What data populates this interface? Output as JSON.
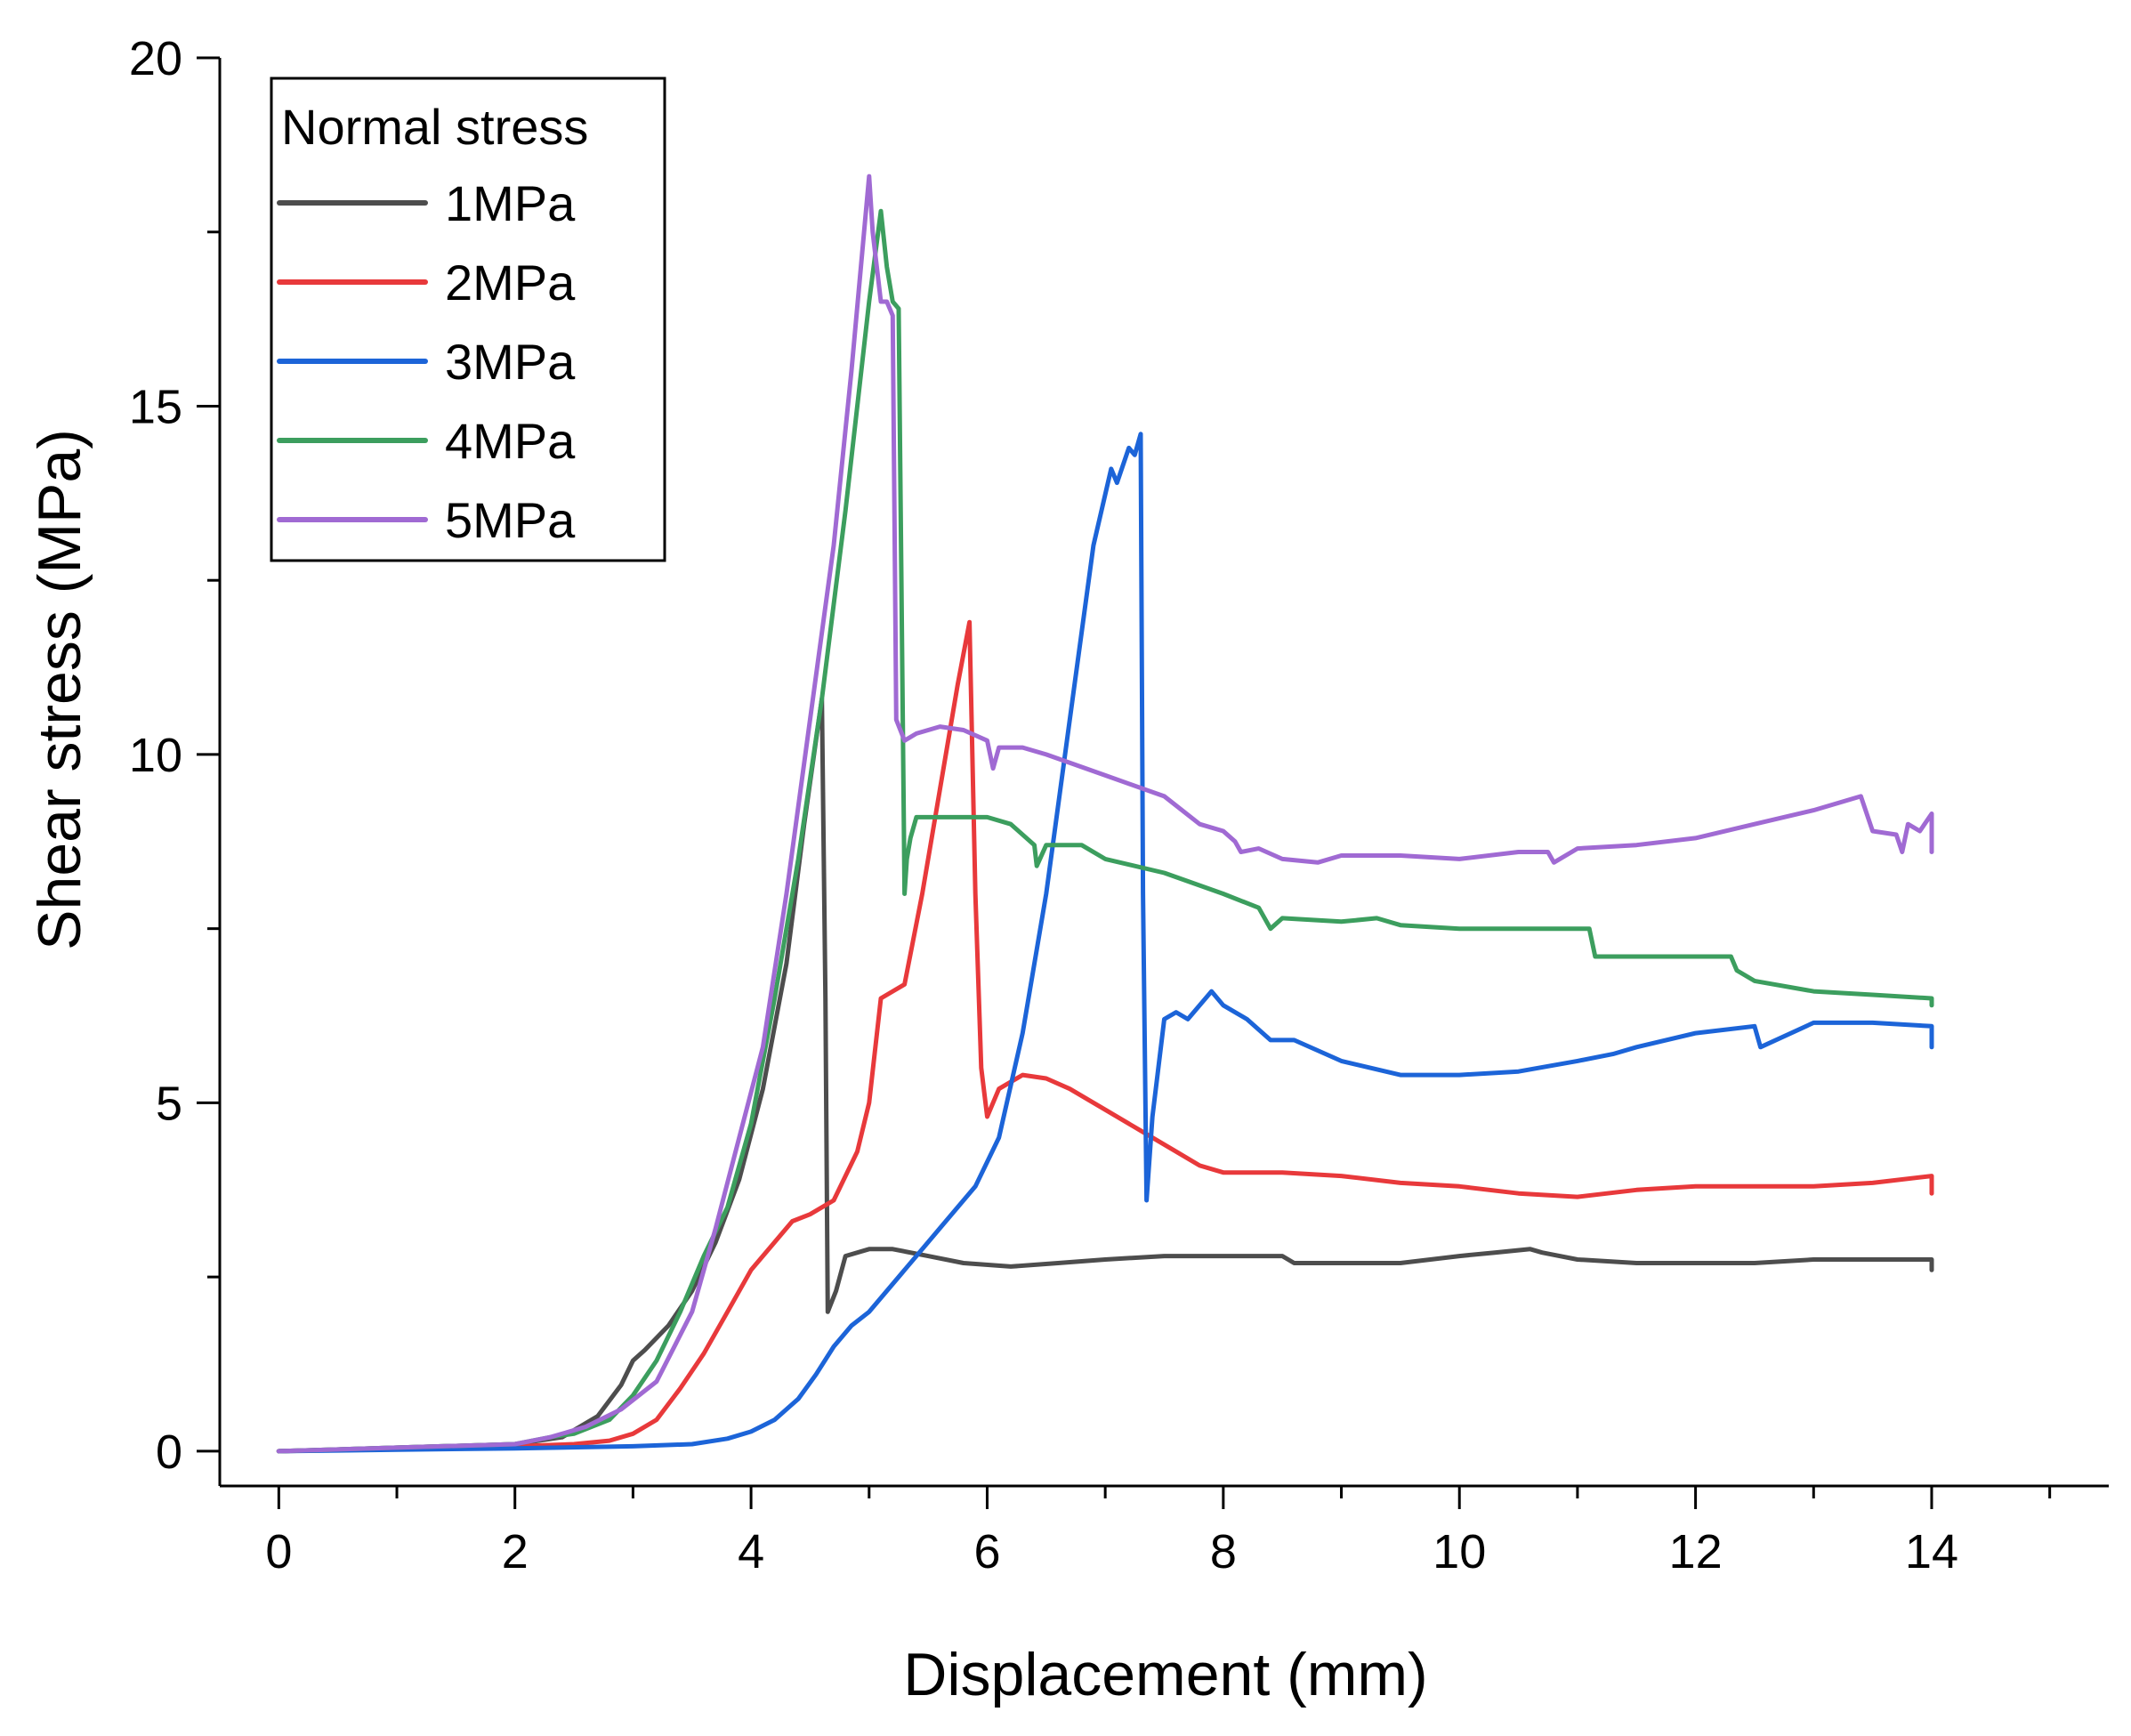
{
  "chart_data": {
    "type": "line",
    "title": "",
    "xlabel": "Displacement (mm)",
    "ylabel": "Shear stress (MPa)",
    "xlim": [
      -0.5,
      15.5
    ],
    "ylim": [
      -0.5,
      20
    ],
    "xticks": [
      0,
      2,
      4,
      6,
      8,
      10,
      12,
      14
    ],
    "xtick_labels": [
      "0",
      "2",
      "4",
      "6",
      "8",
      "10",
      "12",
      "14"
    ],
    "yticks": [
      0,
      5,
      10,
      15,
      20
    ],
    "ytick_labels": [
      "0",
      "5",
      "10",
      "15",
      "20"
    ],
    "legend": {
      "title": "Normal stress",
      "location": "top-left"
    },
    "series": [
      {
        "name": "1MPa",
        "color": "#4d4d4d",
        "x": [
          0,
          1,
          2,
          2.4,
          2.7,
          2.9,
          3.0,
          3.1,
          3.3,
          3.5,
          3.7,
          3.9,
          4.1,
          4.3,
          4.45,
          4.6,
          4.63,
          4.65,
          4.72,
          4.8,
          5.0,
          5.2,
          5.5,
          5.8,
          6.2,
          6.6,
          7.0,
          7.5,
          8.0,
          8.5,
          8.6,
          9.0,
          9.5,
          10.0,
          10.3,
          10.6,
          10.7,
          11.0,
          11.5,
          12.0,
          12.5,
          13.0,
          13.5,
          14.0,
          14.0
        ],
        "y": [
          0,
          0.05,
          0.1,
          0.2,
          0.5,
          0.95,
          1.3,
          1.45,
          1.8,
          2.3,
          3.0,
          3.9,
          5.2,
          7.0,
          9.0,
          10.8,
          6.5,
          2.0,
          2.3,
          2.8,
          2.9,
          2.9,
          2.8,
          2.7,
          2.65,
          2.7,
          2.75,
          2.8,
          2.8,
          2.8,
          2.7,
          2.7,
          2.7,
          2.8,
          2.85,
          2.9,
          2.85,
          2.75,
          2.7,
          2.7,
          2.7,
          2.75,
          2.75,
          2.75,
          2.6
        ]
      },
      {
        "name": "2MPa",
        "color": "#e8393b",
        "x": [
          0,
          1,
          2,
          2.5,
          2.8,
          3.0,
          3.2,
          3.4,
          3.6,
          3.8,
          4.0,
          4.2,
          4.35,
          4.5,
          4.7,
          4.9,
          5.0,
          5.1,
          5.2,
          5.3,
          5.45,
          5.6,
          5.75,
          5.85,
          5.9,
          5.95,
          6.0,
          6.1,
          6.3,
          6.5,
          6.7,
          7.0,
          7.3,
          7.6,
          7.8,
          8.0,
          8.5,
          9.0,
          9.5,
          10.0,
          10.5,
          11.0,
          11.5,
          12.0,
          12.5,
          13.0,
          13.5,
          14.0,
          14.0
        ],
        "y": [
          0,
          0.03,
          0.07,
          0.1,
          0.15,
          0.25,
          0.45,
          0.9,
          1.4,
          2.0,
          2.6,
          3.0,
          3.3,
          3.4,
          3.6,
          4.3,
          5.0,
          6.5,
          6.6,
          6.7,
          8.0,
          9.5,
          11.0,
          11.9,
          8.0,
          5.5,
          4.8,
          5.2,
          5.4,
          5.35,
          5.2,
          4.9,
          4.6,
          4.3,
          4.1,
          4.0,
          4.0,
          3.95,
          3.85,
          3.8,
          3.7,
          3.65,
          3.75,
          3.8,
          3.8,
          3.8,
          3.85,
          3.95,
          3.7
        ]
      },
      {
        "name": "3MPa",
        "color": "#1c64d8",
        "x": [
          0,
          1,
          2,
          3,
          3.5,
          3.8,
          4.0,
          4.2,
          4.4,
          4.55,
          4.7,
          4.85,
          5.0,
          5.3,
          5.6,
          5.9,
          6.1,
          6.3,
          6.5,
          6.7,
          6.9,
          7.05,
          7.1,
          7.2,
          7.25,
          7.3,
          7.32,
          7.35,
          7.4,
          7.5,
          7.6,
          7.7,
          7.8,
          7.9,
          8.0,
          8.2,
          8.4,
          8.6,
          9.0,
          9.5,
          10.0,
          10.5,
          11.0,
          11.3,
          11.5,
          12.0,
          12.5,
          12.55,
          13.0,
          13.5,
          14.0,
          14.0
        ],
        "y": [
          0,
          0.02,
          0.04,
          0.07,
          0.1,
          0.18,
          0.28,
          0.45,
          0.75,
          1.1,
          1.5,
          1.8,
          2.0,
          2.6,
          3.2,
          3.8,
          4.5,
          6.0,
          8.0,
          10.5,
          13.0,
          14.1,
          13.9,
          14.4,
          14.3,
          14.6,
          8.0,
          3.6,
          4.8,
          6.2,
          6.3,
          6.2,
          6.4,
          6.6,
          6.4,
          6.2,
          5.9,
          5.9,
          5.6,
          5.4,
          5.4,
          5.45,
          5.6,
          5.7,
          5.8,
          6.0,
          6.1,
          5.8,
          6.15,
          6.15,
          6.1,
          5.8
        ]
      },
      {
        "name": "4MPa",
        "color": "#3c9e5e",
        "x": [
          0,
          1,
          2,
          2.3,
          2.5,
          2.8,
          3.0,
          3.2,
          3.4,
          3.6,
          3.8,
          4.0,
          4.2,
          4.4,
          4.6,
          4.8,
          5.0,
          5.1,
          5.15,
          5.2,
          5.25,
          5.3,
          5.32,
          5.35,
          5.4,
          5.6,
          5.8,
          6.0,
          6.2,
          6.4,
          6.42,
          6.5,
          6.8,
          7.0,
          7.5,
          8.0,
          8.3,
          8.4,
          8.5,
          9.0,
          9.3,
          9.5,
          10.0,
          10.5,
          11.0,
          11.1,
          11.15,
          11.5,
          12.0,
          12.3,
          12.35,
          12.5,
          13.0,
          13.5,
          14.0,
          14.0
        ],
        "y": [
          0,
          0.05,
          0.1,
          0.2,
          0.25,
          0.45,
          0.8,
          1.3,
          2.0,
          2.8,
          3.5,
          4.7,
          6.5,
          8.5,
          10.8,
          13.5,
          16.5,
          17.8,
          17.0,
          16.5,
          16.4,
          8.0,
          8.5,
          8.8,
          9.1,
          9.1,
          9.1,
          9.1,
          9.0,
          8.7,
          8.4,
          8.7,
          8.7,
          8.5,
          8.3,
          8.0,
          7.8,
          7.5,
          7.65,
          7.6,
          7.65,
          7.55,
          7.5,
          7.5,
          7.5,
          7.5,
          7.1,
          7.1,
          7.1,
          7.1,
          6.9,
          6.75,
          6.6,
          6.55,
          6.5,
          6.4
        ]
      },
      {
        "name": "5MPa",
        "color": "#a06ad3",
        "x": [
          0,
          1,
          2,
          2.3,
          2.6,
          2.9,
          3.2,
          3.5,
          3.7,
          3.9,
          4.1,
          4.3,
          4.5,
          4.7,
          4.85,
          5.0,
          5.03,
          5.1,
          5.15,
          5.2,
          5.23,
          5.3,
          5.4,
          5.6,
          5.8,
          6.0,
          6.05,
          6.1,
          6.3,
          6.5,
          7.0,
          7.5,
          7.8,
          8.0,
          8.1,
          8.15,
          8.3,
          8.5,
          8.8,
          9.0,
          9.5,
          10.0,
          10.5,
          10.75,
          10.8,
          11.0,
          11.5,
          12.0,
          12.5,
          13.0,
          13.4,
          13.5,
          13.7,
          13.75,
          13.8,
          13.9,
          14.0,
          14.0
        ],
        "y": [
          0,
          0.05,
          0.1,
          0.2,
          0.35,
          0.6,
          1.0,
          2.0,
          3.2,
          4.5,
          5.8,
          8.0,
          10.5,
          13.0,
          15.5,
          18.3,
          17.5,
          16.5,
          16.5,
          16.3,
          10.5,
          10.2,
          10.3,
          10.4,
          10.35,
          10.2,
          9.8,
          10.1,
          10.1,
          10.0,
          9.7,
          9.4,
          9.0,
          8.9,
          8.75,
          8.6,
          8.65,
          8.5,
          8.45,
          8.55,
          8.55,
          8.5,
          8.6,
          8.6,
          8.45,
          8.65,
          8.7,
          8.8,
          9.0,
          9.2,
          9.4,
          8.9,
          8.85,
          8.6,
          9.0,
          8.9,
          9.15,
          8.6
        ]
      }
    ]
  }
}
